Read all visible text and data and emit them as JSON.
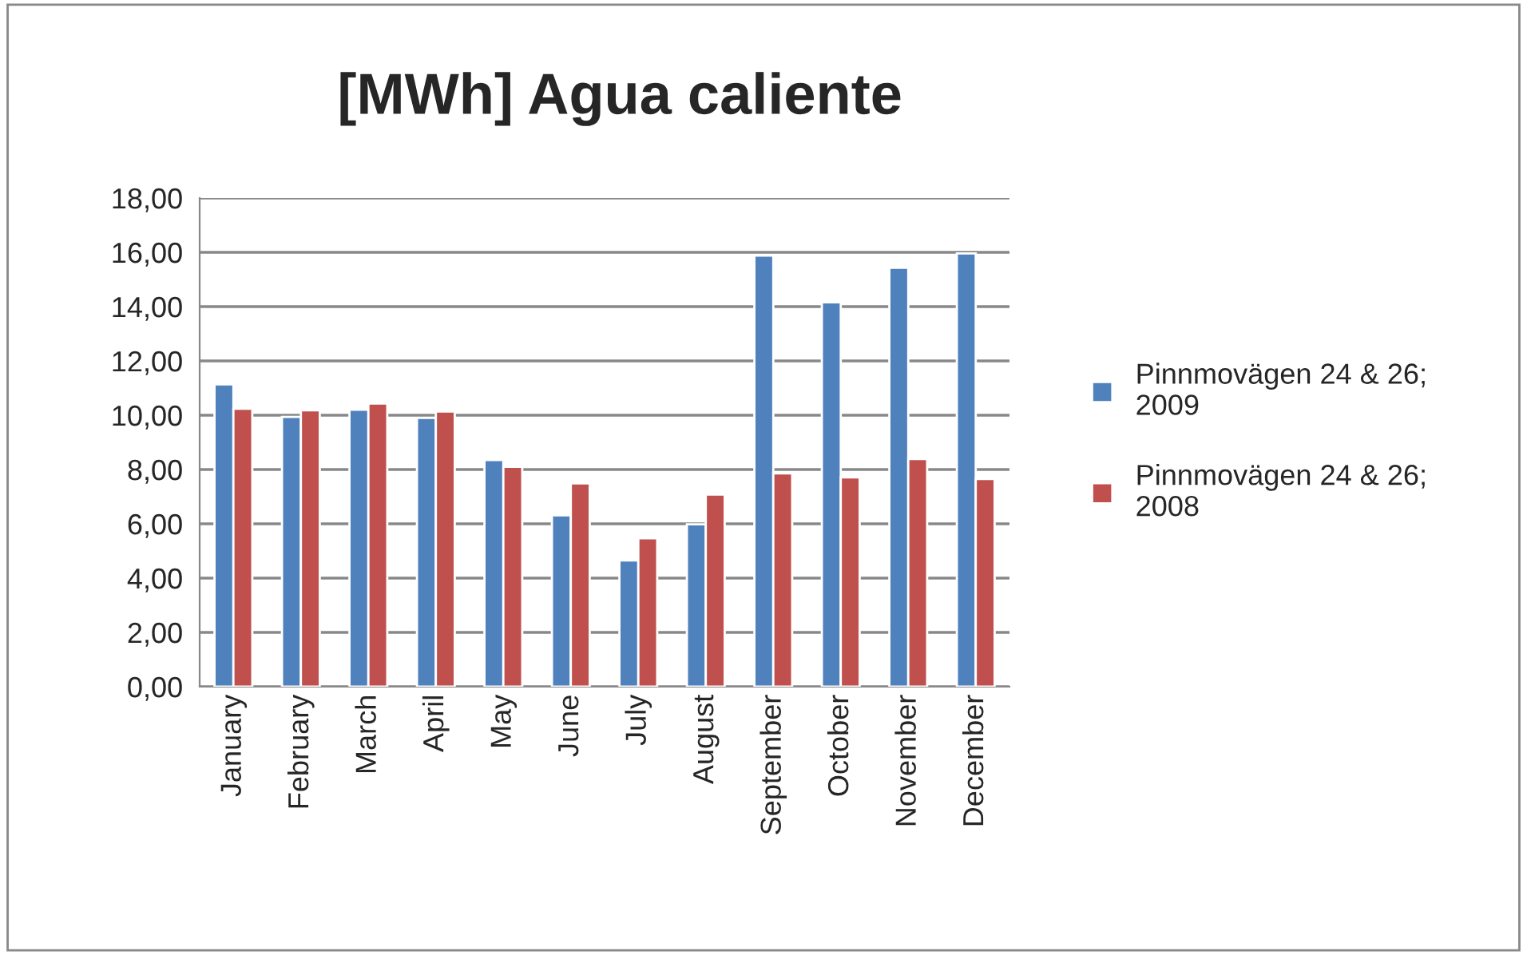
{
  "chart_data": {
    "type": "bar",
    "title": "[MWh] Agua caliente",
    "categories": [
      "January",
      "February",
      "March",
      "April",
      "May",
      "June",
      "July",
      "August",
      "September",
      "October",
      "November",
      "December"
    ],
    "series": [
      {
        "name": "Pinnmovägen 24 & 26; 2009",
        "color": "#4f81bd",
        "values": [
          11.14,
          9.94,
          10.2,
          9.9,
          8.35,
          6.31,
          4.65,
          5.98,
          15.88,
          14.16,
          15.43,
          15.96
        ]
      },
      {
        "name": "Pinnmovägen 24 & 26; 2008",
        "color": "#c0504d",
        "values": [
          10.24,
          10.18,
          10.43,
          10.14,
          8.1,
          7.49,
          5.47,
          7.08,
          7.86,
          7.71,
          8.39,
          7.65
        ]
      }
    ],
    "ylim": [
      0,
      18
    ],
    "yticks": [
      {
        "value": 0,
        "label": "0,00"
      },
      {
        "value": 2,
        "label": "2,00"
      },
      {
        "value": 4,
        "label": "4,00"
      },
      {
        "value": 6,
        "label": "6,00"
      },
      {
        "value": 8,
        "label": "8,00"
      },
      {
        "value": 10,
        "label": "10,00"
      },
      {
        "value": 12,
        "label": "12,00"
      },
      {
        "value": 14,
        "label": "14,00"
      },
      {
        "value": 16,
        "label": "16,00"
      },
      {
        "value": 18,
        "label": "18,00"
      }
    ],
    "grid": "y",
    "legend": "right"
  }
}
